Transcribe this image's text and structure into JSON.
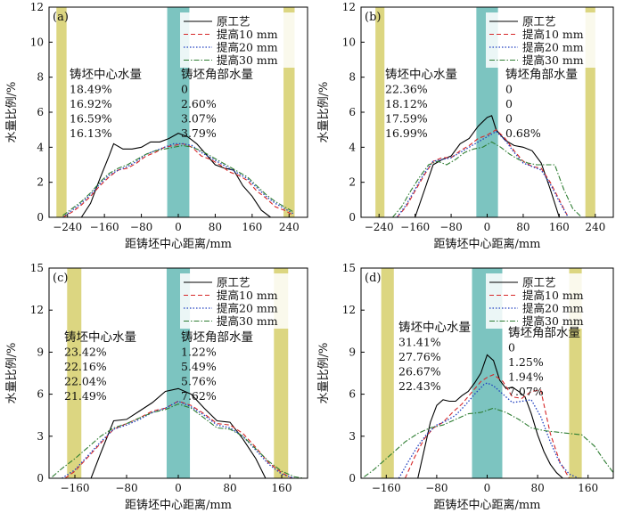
{
  "chart_data": [
    {
      "type": "line",
      "panel_label": "(a)",
      "xlabel": "距铸坯中心距离/mm",
      "ylabel": "水量比例/%",
      "xlim": [
        -280,
        280
      ],
      "ylim": [
        0,
        12
      ],
      "xticks": [
        -240,
        -160,
        -80,
        0,
        80,
        160,
        240
      ],
      "yticks": [
        0,
        2,
        4,
        6,
        8,
        10,
        12
      ],
      "grid": false,
      "legend_position": "top-right",
      "bands": [
        {
          "range": [
            -264,
            -242
          ],
          "color": "#dcd681"
        },
        {
          "range": [
            -24,
            24
          ],
          "color": "#7cc4c0"
        },
        {
          "range": [
            228,
            252
          ],
          "color": "#dcd681"
        }
      ],
      "annotations": {
        "center_title": "铸坯中心水量",
        "center_values": [
          "18.49%",
          "16.92%",
          "16.59%",
          "16.13%"
        ],
        "corner_title": "铸坯角部水量",
        "corner_values": [
          "0",
          "2.60%",
          "3.07%",
          "3.79%"
        ]
      },
      "series": [
        {
          "name": "原工艺",
          "x": [
            -210,
            -190,
            -170,
            -150,
            -140,
            -120,
            -100,
            -80,
            -60,
            -40,
            -20,
            0,
            20,
            40,
            60,
            80,
            100,
            120,
            140,
            160,
            180,
            200
          ],
          "y": [
            0,
            0.8,
            2.2,
            3.5,
            4.2,
            3.9,
            3.9,
            4.0,
            4.3,
            4.3,
            4.5,
            4.8,
            4.6,
            4.2,
            3.6,
            3.0,
            2.8,
            2.7,
            1.8,
            1.2,
            0.4,
            0
          ]
        },
        {
          "name": "提高10 mm",
          "x": [
            -250,
            -230,
            -210,
            -190,
            -170,
            -150,
            -130,
            -110,
            -90,
            -70,
            -50,
            -30,
            -10,
            10,
            30,
            50,
            70,
            90,
            110,
            130,
            150,
            170,
            190,
            210,
            230,
            250
          ],
          "y": [
            0,
            0.3,
            0.7,
            1.2,
            1.8,
            2.3,
            2.7,
            2.8,
            3.1,
            3.5,
            3.7,
            4.0,
            4.1,
            4.2,
            4.0,
            3.5,
            3.3,
            3.0,
            2.6,
            2.4,
            2.1,
            1.5,
            1.1,
            0.6,
            0.4,
            0.1
          ]
        },
        {
          "name": "提高20 mm",
          "x": [
            -250,
            -230,
            -210,
            -190,
            -170,
            -150,
            -130,
            -110,
            -90,
            -70,
            -50,
            -30,
            -10,
            10,
            30,
            50,
            70,
            90,
            110,
            130,
            150,
            170,
            190,
            210,
            230,
            250
          ],
          "y": [
            0,
            0.4,
            0.8,
            1.3,
            1.9,
            2.4,
            2.7,
            2.9,
            3.2,
            3.6,
            3.8,
            4.0,
            4.2,
            4.2,
            4.1,
            3.7,
            3.4,
            3.1,
            2.8,
            2.5,
            2.2,
            1.7,
            1.2,
            0.8,
            0.5,
            0.2
          ]
        },
        {
          "name": "提高30 mm",
          "x": [
            -250,
            -230,
            -210,
            -190,
            -170,
            -150,
            -130,
            -110,
            -90,
            -70,
            -50,
            -30,
            -10,
            10,
            30,
            50,
            70,
            90,
            110,
            130,
            150,
            170,
            190,
            210,
            230,
            250
          ],
          "y": [
            0.1,
            0.5,
            0.9,
            1.4,
            2.0,
            2.5,
            2.8,
            3.0,
            3.3,
            3.6,
            3.8,
            3.9,
            4.0,
            4.1,
            4.0,
            3.8,
            3.5,
            3.2,
            2.9,
            2.6,
            2.3,
            1.8,
            1.3,
            0.9,
            0.6,
            0.3
          ]
        }
      ]
    },
    {
      "type": "line",
      "panel_label": "(b)",
      "xlabel": "距铸坯中心距离/mm",
      "ylabel": "水量比例/%",
      "xlim": [
        -280,
        280
      ],
      "ylim": [
        0,
        12
      ],
      "xticks": [
        -240,
        -160,
        -80,
        0,
        80,
        160,
        240
      ],
      "yticks": [
        0,
        2,
        4,
        6,
        8,
        10,
        12
      ],
      "grid": false,
      "legend_position": "top-right",
      "bands": [
        {
          "range": [
            -248,
            -228
          ],
          "color": "#dcd681"
        },
        {
          "range": [
            -24,
            24
          ],
          "color": "#7cc4c0"
        },
        {
          "range": [
            218,
            240
          ],
          "color": "#dcd681"
        }
      ],
      "annotations": {
        "center_title": "铸坯中心水量",
        "center_values": [
          "22.36%",
          "18.12%",
          "17.59%",
          "16.99%"
        ],
        "corner_title": "铸坯角部水量",
        "corner_values": [
          "0",
          "0",
          "0",
          "0.68%"
        ]
      },
      "series": [
        {
          "name": "原工艺",
          "x": [
            -160,
            -140,
            -120,
            -100,
            -80,
            -60,
            -40,
            -20,
            0,
            10,
            20,
            40,
            60,
            80,
            100,
            120,
            140,
            160
          ],
          "y": [
            0,
            1.5,
            3.0,
            3.3,
            3.5,
            4.2,
            4.5,
            5.2,
            5.7,
            5.8,
            5.0,
            4.4,
            4.1,
            4.0,
            3.8,
            3.1,
            1.6,
            0
          ]
        },
        {
          "name": "提高10 mm",
          "x": [
            -200,
            -180,
            -160,
            -140,
            -120,
            -100,
            -80,
            -60,
            -40,
            -20,
            0,
            20,
            40,
            60,
            80,
            100,
            120,
            140,
            160,
            180
          ],
          "y": [
            0,
            0.6,
            1.5,
            2.4,
            3.2,
            3.4,
            3.4,
            3.8,
            4.1,
            4.5,
            4.7,
            5.0,
            4.5,
            3.8,
            3.2,
            2.9,
            2.8,
            2.0,
            1.0,
            0
          ]
        },
        {
          "name": "提高20 mm",
          "x": [
            -200,
            -180,
            -160,
            -140,
            -120,
            -100,
            -80,
            -60,
            -40,
            -20,
            0,
            20,
            40,
            60,
            80,
            100,
            120,
            140,
            160,
            180
          ],
          "y": [
            0,
            0.7,
            1.6,
            2.5,
            3.2,
            3.3,
            3.4,
            3.7,
            4.0,
            4.3,
            4.6,
            4.9,
            4.4,
            3.7,
            3.1,
            2.9,
            2.7,
            1.9,
            0.9,
            0
          ]
        },
        {
          "name": "提高30 mm",
          "x": [
            -210,
            -190,
            -170,
            -150,
            -130,
            -110,
            -90,
            -70,
            -50,
            -30,
            -10,
            10,
            30,
            50,
            70,
            90,
            110,
            130,
            150,
            170,
            190,
            210
          ],
          "y": [
            0,
            0.6,
            1.5,
            2.3,
            3.0,
            3.2,
            3.0,
            3.3,
            3.7,
            3.9,
            4.0,
            4.3,
            4.0,
            3.6,
            3.3,
            3.1,
            3.0,
            3.0,
            3.0,
            1.6,
            0.5,
            0
          ]
        }
      ]
    },
    {
      "type": "line",
      "panel_label": "(c)",
      "xlabel": "距铸坯中心距离/mm",
      "ylabel": "水量比例/%",
      "xlim": [
        -200,
        200
      ],
      "ylim": [
        0,
        15
      ],
      "xticks": [
        -160,
        -80,
        0,
        80,
        160
      ],
      "yticks": [
        0,
        3,
        6,
        9,
        12,
        15
      ],
      "grid": false,
      "legend_position": "top-right",
      "bands": [
        {
          "range": [
            -172,
            -150
          ],
          "color": "#dcd681"
        },
        {
          "range": [
            -18,
            18
          ],
          "color": "#7cc4c0"
        },
        {
          "range": [
            148,
            170
          ],
          "color": "#dcd681"
        }
      ],
      "annotations": {
        "center_title": "铸坯中心水量",
        "center_values": [
          "23.42%",
          "22.16%",
          "22.04%",
          "21.49%"
        ],
        "corner_title": "铸坯角部水量",
        "corner_values": [
          "1.22%",
          "5.49%",
          "5.76%",
          "7.62%"
        ]
      },
      "series": [
        {
          "name": "原工艺",
          "x": [
            -135,
            -120,
            -100,
            -80,
            -60,
            -40,
            -20,
            0,
            20,
            40,
            60,
            80,
            100,
            120,
            135
          ],
          "y": [
            0,
            1.8,
            4.1,
            4.2,
            4.8,
            5.4,
            6.2,
            6.4,
            6.0,
            5.0,
            4.1,
            4.0,
            2.8,
            1.4,
            0
          ]
        },
        {
          "name": "提高10 mm",
          "x": [
            -175,
            -160,
            -140,
            -120,
            -100,
            -80,
            -60,
            -40,
            -20,
            0,
            20,
            40,
            60,
            80,
            100,
            120,
            140,
            160,
            175
          ],
          "y": [
            0,
            0.5,
            1.5,
            2.5,
            3.5,
            3.9,
            4.3,
            4.8,
            5.0,
            5.5,
            5.2,
            4.6,
            3.9,
            3.8,
            3.2,
            2.2,
            1.1,
            0.4,
            0
          ]
        },
        {
          "name": "提高20 mm",
          "x": [
            -180,
            -160,
            -140,
            -120,
            -100,
            -80,
            -60,
            -40,
            -20,
            0,
            20,
            40,
            60,
            80,
            100,
            120,
            140,
            160,
            180
          ],
          "y": [
            0,
            0.6,
            1.6,
            2.6,
            3.5,
            3.8,
            4.2,
            4.7,
            5.0,
            5.5,
            5.1,
            4.5,
            3.8,
            3.6,
            3.0,
            2.0,
            1.0,
            0.3,
            0
          ]
        },
        {
          "name": "提高30 mm",
          "x": [
            -195,
            -180,
            -160,
            -140,
            -120,
            -100,
            -80,
            -60,
            -40,
            -20,
            0,
            20,
            40,
            60,
            80,
            100,
            120,
            140,
            160,
            180,
            195
          ],
          "y": [
            0.1,
            0.7,
            1.4,
            2.2,
            3.0,
            3.6,
            3.9,
            4.3,
            4.7,
            4.9,
            5.3,
            5.0,
            4.3,
            3.6,
            3.5,
            3.0,
            2.1,
            1.2,
            0.5,
            0.1,
            0
          ]
        }
      ]
    },
    {
      "type": "line",
      "panel_label": "(d)",
      "xlabel": "距铸坯中心距离/mm",
      "ylabel": "水量比例/%",
      "xlim": [
        -200,
        200
      ],
      "ylim": [
        0,
        15
      ],
      "xticks": [
        -160,
        -80,
        0,
        80,
        160
      ],
      "yticks": [
        0,
        3,
        6,
        9,
        12,
        15
      ],
      "grid": false,
      "legend_position": "top-right",
      "bands": [
        {
          "range": [
            -168,
            -148
          ],
          "color": "#dcd681"
        },
        {
          "range": [
            -24,
            24
          ],
          "color": "#7cc4c0"
        },
        {
          "range": [
            130,
            150
          ],
          "color": "#dcd681"
        }
      ],
      "annotations": {
        "center_title": "铸坯中心水量",
        "center_values": [
          "31.41%",
          "27.76%",
          "26.67%",
          "22.43%"
        ],
        "corner_title": "铸坯角部水量",
        "corner_values": [
          "0",
          "1.25%",
          "1.94%",
          "7.07%"
        ]
      },
      "series": [
        {
          "name": "原工艺",
          "x": [
            -110,
            -100,
            -90,
            -80,
            -70,
            -60,
            -50,
            -40,
            -30,
            -20,
            -10,
            0,
            10,
            20,
            30,
            40,
            50,
            60,
            70,
            80,
            90,
            100,
            110,
            120
          ],
          "y": [
            0,
            2.0,
            4.0,
            5.2,
            5.6,
            5.5,
            5.5,
            5.9,
            6.2,
            6.8,
            7.5,
            8.8,
            8.4,
            7.0,
            6.4,
            6.5,
            6.2,
            5.8,
            4.6,
            3.1,
            1.9,
            1.0,
            0.4,
            0
          ]
        },
        {
          "name": "提高10 mm",
          "x": [
            -130,
            -115,
            -100,
            -85,
            -70,
            -55,
            -40,
            -25,
            -10,
            0,
            10,
            25,
            40,
            55,
            70,
            85,
            100,
            115,
            130
          ],
          "y": [
            0,
            1.5,
            2.8,
            3.6,
            4.0,
            4.7,
            5.3,
            6.1,
            6.9,
            7.2,
            7.4,
            6.9,
            5.8,
            5.7,
            6.2,
            6.3,
            3.2,
            1.2,
            0
          ]
        },
        {
          "name": "提高20 mm",
          "x": [
            -140,
            -125,
            -110,
            -95,
            -80,
            -65,
            -50,
            -35,
            -20,
            -5,
            0,
            10,
            25,
            40,
            55,
            70,
            85,
            100,
            115,
            130,
            145
          ],
          "y": [
            0,
            1.2,
            2.3,
            3.2,
            3.8,
            4.1,
            4.5,
            5.2,
            6.0,
            6.7,
            6.8,
            6.6,
            6.0,
            5.4,
            5.5,
            5.6,
            4.4,
            2.6,
            1.1,
            0.3,
            0
          ]
        },
        {
          "name": "提高30 mm",
          "x": [
            -195,
            -180,
            -165,
            -150,
            -130,
            -110,
            -90,
            -70,
            -50,
            -30,
            -10,
            10,
            30,
            50,
            70,
            90,
            110,
            130,
            150,
            170,
            185,
            200
          ],
          "y": [
            0.1,
            0.6,
            1.2,
            1.8,
            2.6,
            3.2,
            3.6,
            3.8,
            4.2,
            4.6,
            4.7,
            5.0,
            4.7,
            4.2,
            3.6,
            3.4,
            3.3,
            3.2,
            3.1,
            2.3,
            1.3,
            0.4
          ]
        }
      ]
    }
  ]
}
